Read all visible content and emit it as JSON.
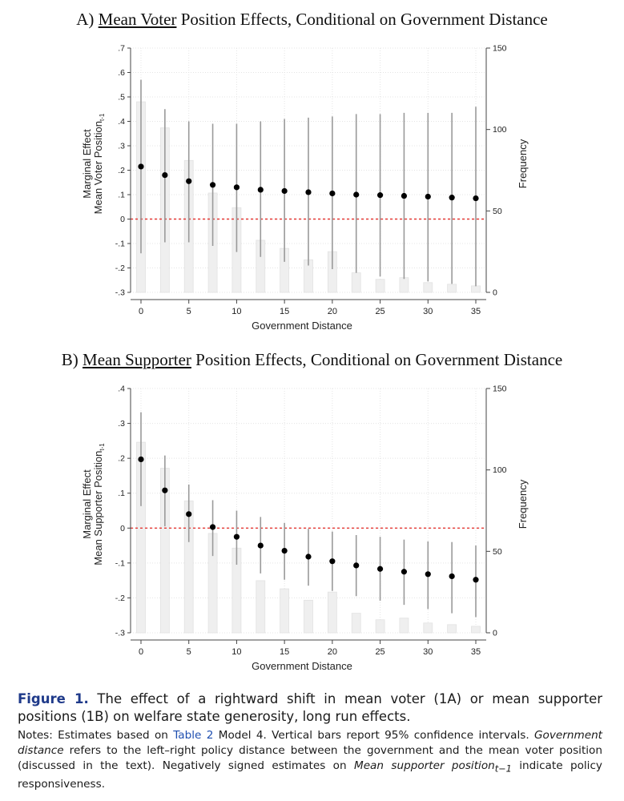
{
  "panels": [
    {
      "title_prefix": "A) ",
      "title_underlined": "Mean Voter",
      "title_suffix": " Position Effects, Conditional on Government Distance"
    },
    {
      "title_prefix": "B) ",
      "title_underlined": "Mean Supporter",
      "title_suffix": " Position Effects, Conditional on Government Distance"
    }
  ],
  "caption": {
    "figure_label": "Figure 1.",
    "figure_text": " The effect of a rightward shift in mean voter (1A) or mean supporter positions (1B) on welfare state generosity, long run effects.",
    "notes_a": "Notes: Estimates based on ",
    "notes_link": "Table 2",
    "notes_b": " Model 4. Vertical bars report 95% confidence intervals. ",
    "notes_c_italic": "Government distance",
    "notes_d": " refers to the left–right policy distance between the government and the mean voter position (discussed in the text). Negatively signed estimates on ",
    "notes_e_italic": "Mean supporter position",
    "notes_e_sub": "t−1",
    "notes_f": " indicate policy responsiveness."
  },
  "chart_data": [
    {
      "type": "scatter",
      "title": "A) Mean Voter Position Effects, Conditional on Government Distance",
      "xlabel": "Government Distance",
      "ylabel_line1": "Marginal Effect",
      "ylabel_line2": "Mean Voter Position",
      "ylabel_sub": "t-1",
      "y2label": "Frequency",
      "xlim": [
        0,
        35
      ],
      "ylim": [
        -0.3,
        0.7
      ],
      "y2lim": [
        0,
        150
      ],
      "xticks": [
        "0",
        "5",
        "10",
        "15",
        "20",
        "25",
        "30",
        "35"
      ],
      "yticks": [
        "-.3",
        "-.2",
        "-.1",
        "0",
        ".1",
        ".2",
        ".3",
        ".4",
        ".5",
        ".6",
        ".7"
      ],
      "y2ticks": [
        "0",
        "50",
        "100",
        "150"
      ],
      "reference_line": 0,
      "grid": true,
      "estimates": {
        "x": [
          0,
          2.5,
          5,
          7.5,
          10,
          12.5,
          15,
          17.5,
          20,
          22.5,
          25,
          27.5,
          30,
          32.5,
          35
        ],
        "y": [
          0.215,
          0.18,
          0.155,
          0.14,
          0.13,
          0.12,
          0.115,
          0.11,
          0.105,
          0.1,
          0.098,
          0.095,
          0.092,
          0.088,
          0.085
        ],
        "lower": [
          -0.14,
          -0.095,
          -0.095,
          -0.11,
          -0.135,
          -0.155,
          -0.175,
          -0.19,
          -0.205,
          -0.22,
          -0.235,
          -0.245,
          -0.255,
          -0.265,
          -0.275
        ],
        "upper": [
          0.57,
          0.45,
          0.4,
          0.39,
          0.39,
          0.4,
          0.41,
          0.415,
          0.42,
          0.43,
          0.43,
          0.435,
          0.435,
          0.435,
          0.46
        ]
      },
      "histogram": {
        "x": [
          0,
          2.5,
          5,
          7.5,
          10,
          12.5,
          15,
          17.5,
          20,
          22.5,
          25,
          27.5,
          30,
          32.5,
          35
        ],
        "frequency": [
          117,
          101,
          81,
          61,
          52,
          32,
          27,
          20,
          25,
          12,
          8,
          9,
          6,
          5,
          4
        ]
      }
    },
    {
      "type": "scatter",
      "title": "B) Mean Supporter Position Effects, Conditional on Government Distance",
      "xlabel": "Government Distance",
      "ylabel_line1": "Marginal Effect",
      "ylabel_line2": "Mean Supporter Position",
      "ylabel_sub": "t-1",
      "y2label": "Frequency",
      "xlim": [
        0,
        35
      ],
      "ylim": [
        -0.3,
        0.4
      ],
      "y2lim": [
        0,
        150
      ],
      "xticks": [
        "0",
        "5",
        "10",
        "15",
        "20",
        "25",
        "30",
        "35"
      ],
      "yticks": [
        "-.3",
        "-.2",
        "-.1",
        "0",
        ".1",
        ".2",
        ".3",
        ".4"
      ],
      "y2ticks": [
        "0",
        "50",
        "100",
        "150"
      ],
      "reference_line": 0,
      "grid": true,
      "estimates": {
        "x": [
          0,
          2.5,
          5,
          7.5,
          10,
          12.5,
          15,
          17.5,
          20,
          22.5,
          25,
          27.5,
          30,
          32.5,
          35
        ],
        "y": [
          0.197,
          0.108,
          0.04,
          0.003,
          -0.025,
          -0.05,
          -0.065,
          -0.082,
          -0.095,
          -0.107,
          -0.117,
          -0.125,
          -0.132,
          -0.138,
          -0.148
        ],
        "lower": [
          0.063,
          0.005,
          -0.04,
          -0.08,
          -0.105,
          -0.13,
          -0.148,
          -0.165,
          -0.18,
          -0.195,
          -0.208,
          -0.22,
          -0.232,
          -0.244,
          -0.255
        ],
        "upper": [
          0.332,
          0.208,
          0.125,
          0.08,
          0.05,
          0.032,
          0.015,
          -0.002,
          -0.01,
          -0.02,
          -0.025,
          -0.033,
          -0.038,
          -0.04,
          -0.05
        ]
      },
      "histogram": {
        "x": [
          0,
          2.5,
          5,
          7.5,
          10,
          12.5,
          15,
          17.5,
          20,
          22.5,
          25,
          27.5,
          30,
          32.5,
          35
        ],
        "frequency": [
          117,
          101,
          81,
          61,
          52,
          32,
          27,
          20,
          25,
          12,
          8,
          9,
          6,
          5,
          4
        ]
      }
    }
  ]
}
